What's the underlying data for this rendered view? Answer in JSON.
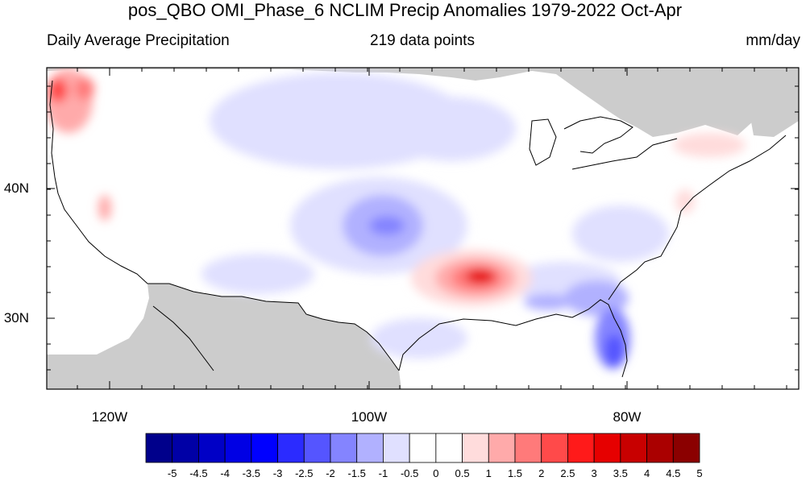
{
  "title": "pos_QBO OMI_Phase_6 NCLIM Precip Anomalies 1979-2022 Oct-Apr",
  "subtitle_left": "Daily Average Precipitation",
  "subtitle_center": "219 data points",
  "subtitle_right": "mm/day",
  "lat_labels": [
    "40N",
    "30N"
  ],
  "lon_labels": [
    "120W",
    "100W",
    "80W"
  ],
  "colorbar": {
    "ticks": [
      "-5",
      "-4.5",
      "-4",
      "-3.5",
      "-3",
      "-2.5",
      "-2",
      "-1.5",
      "-1",
      "-0.5",
      "0",
      "0.5",
      "1",
      "1.5",
      "2",
      "2.5",
      "3",
      "3.5",
      "4",
      "4.5",
      "5"
    ],
    "colors": [
      "#00008b",
      "#0000a6",
      "#0000c6",
      "#0000e4",
      "#0000ff",
      "#2b2bff",
      "#5555ff",
      "#8484ff",
      "#b1b1ff",
      "#e0e0ff",
      "#ffffff",
      "#ffffff",
      "#ffdcdc",
      "#ffaaaa",
      "#ff7a7a",
      "#ff4a4a",
      "#ff1a1a",
      "#e60000",
      "#c80000",
      "#aa0000",
      "#8b0000"
    ]
  },
  "colors": {
    "land_masked": "#cccccc",
    "frame": "#000000",
    "coast": "#000000"
  }
}
